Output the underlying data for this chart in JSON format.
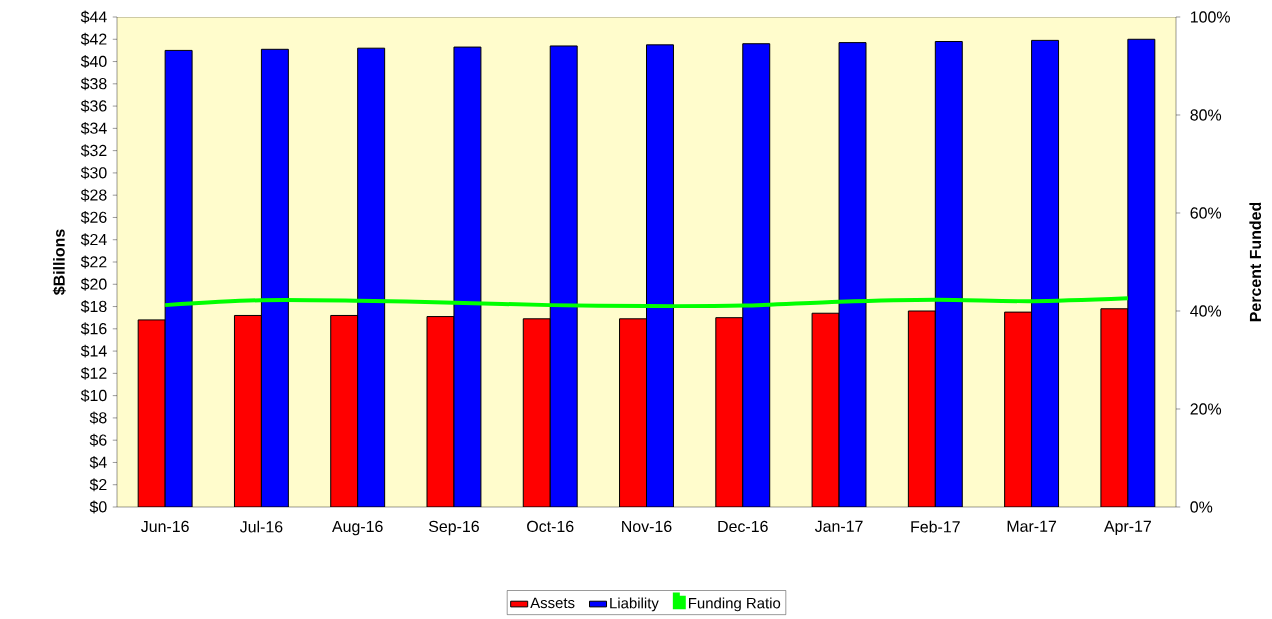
{
  "chart_data": {
    "type": "bar",
    "ylabel": "$Billions",
    "y2label": "Percent Funded",
    "categories": [
      "Jun-16",
      "Jul-16",
      "Aug-16",
      "Sep-16",
      "Oct-16",
      "Nov-16",
      "Dec-16",
      "Jan-17",
      "Feb-17",
      "Mar-17",
      "Apr-17"
    ],
    "series": [
      {
        "name": "Assets",
        "color": "#ff0000",
        "values": [
          16.8,
          17.2,
          17.2,
          17.1,
          16.9,
          16.9,
          17.0,
          17.4,
          17.6,
          17.5,
          17.8
        ]
      },
      {
        "name": "Liability",
        "color": "#0000ff",
        "values": [
          41.0,
          41.1,
          41.2,
          41.3,
          41.4,
          41.5,
          41.6,
          41.7,
          41.8,
          41.9,
          42.0
        ]
      },
      {
        "name": "Funding Ratio",
        "type": "line",
        "axis": "y2",
        "color": "#00ff00",
        "values": [
          41.2,
          42.2,
          42.1,
          41.7,
          41.2,
          41.0,
          41.1,
          41.9,
          42.3,
          42.0,
          42.6
        ]
      }
    ],
    "ylim": [
      0,
      44
    ],
    "yticks": [
      {
        "value": 0,
        "label": "$0"
      },
      {
        "value": 2,
        "label": "$2"
      },
      {
        "value": 4,
        "label": "$4"
      },
      {
        "value": 6,
        "label": "$6"
      },
      {
        "value": 8,
        "label": "$8"
      },
      {
        "value": 10,
        "label": "$10"
      },
      {
        "value": 12,
        "label": "$12"
      },
      {
        "value": 14,
        "label": "$14"
      },
      {
        "value": 16,
        "label": "$16"
      },
      {
        "value": 18,
        "label": "$18"
      },
      {
        "value": 20,
        "label": "$20"
      },
      {
        "value": 22,
        "label": "$22"
      },
      {
        "value": 24,
        "label": "$24"
      },
      {
        "value": 26,
        "label": "$26"
      },
      {
        "value": 28,
        "label": "$28"
      },
      {
        "value": 30,
        "label": "$30"
      },
      {
        "value": 32,
        "label": "$32"
      },
      {
        "value": 34,
        "label": "$34"
      },
      {
        "value": 36,
        "label": "$36"
      },
      {
        "value": 38,
        "label": "$38"
      },
      {
        "value": 40,
        "label": "$40"
      },
      {
        "value": 42,
        "label": "$42"
      },
      {
        "value": 44,
        "label": "$44"
      }
    ],
    "y2lim": [
      0,
      100
    ],
    "y2ticks": [
      {
        "value": 0,
        "label": "0%"
      },
      {
        "value": 20,
        "label": "20%"
      },
      {
        "value": 40,
        "label": "40%"
      },
      {
        "value": 60,
        "label": "60%"
      },
      {
        "value": 80,
        "label": "80%"
      },
      {
        "value": 100,
        "label": "100%"
      }
    ],
    "legend": "bottom",
    "grid": false,
    "marker": "none",
    "line_style": "solid"
  }
}
